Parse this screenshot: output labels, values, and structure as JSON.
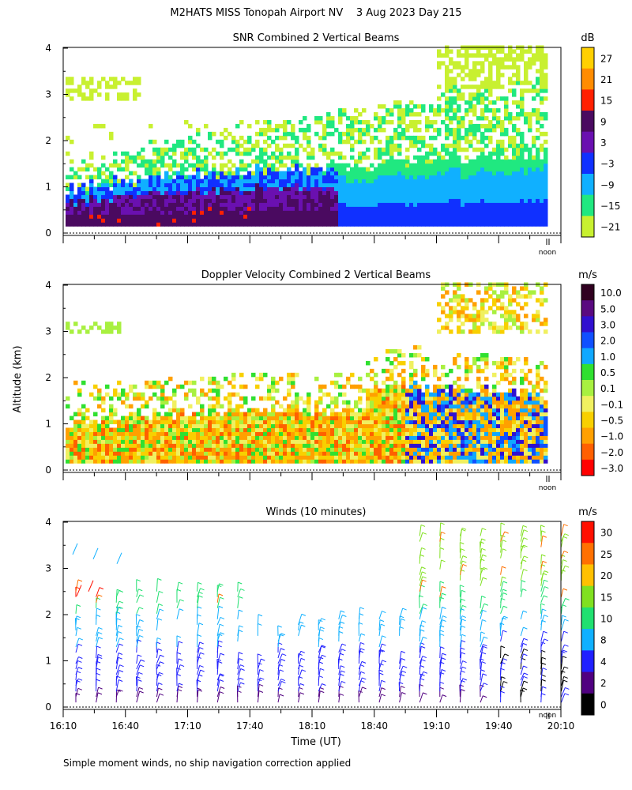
{
  "title": "M2HATS MISS Tonopah Airport NV    3 Aug 2023 Day 215",
  "ylabel": "Altitude (km)",
  "xlabel": "Time (UT)",
  "footnote": "Simple moment winds, no ship navigation correction applied",
  "noon_label": "noon",
  "x_ticks": [
    "16:10",
    "16:40",
    "17:10",
    "17:40",
    "18:10",
    "18:40",
    "19:10",
    "19:40",
    "20:10"
  ],
  "chart_data": [
    {
      "type": "heatmap",
      "title": "SNR Combined 2 Vertical Beams",
      "unit": "dB",
      "ylim": [
        0,
        4
      ],
      "y_ticks": [
        "0",
        "1",
        "2",
        "3",
        "4"
      ],
      "colorbar_labels": [
        "27",
        "21",
        "15",
        "9",
        "3",
        "−3",
        "−9",
        "−15",
        "−21"
      ],
      "colorbar_colors": [
        "#ffd000",
        "#ff8c00",
        "#ff2000",
        "#4a0a60",
        "#6a10b0",
        "#1030ff",
        "#10b0ff",
        "#20e880",
        "#c8f030"
      ]
    },
    {
      "type": "heatmap",
      "title": "Doppler Velocity Combined 2 Vertical Beams",
      "unit": "m/s",
      "ylim": [
        0,
        4
      ],
      "y_ticks": [
        "0",
        "1",
        "2",
        "3",
        "4"
      ],
      "colorbar_labels": [
        "10.0",
        "5.0",
        "3.0",
        "2.0",
        "1.0",
        "0.5",
        "0.1",
        "−0.1",
        "−0.5",
        "−1.0",
        "−2.0",
        "−3.0"
      ],
      "colorbar_colors": [
        "#300020",
        "#5a0a80",
        "#3010d0",
        "#1050ff",
        "#10a8ff",
        "#30e030",
        "#a8f040",
        "#f0f060",
        "#f8d000",
        "#ffa000",
        "#ff6000",
        "#ff0000"
      ]
    },
    {
      "type": "scatter",
      "title": "Winds (10 minutes)",
      "unit": "m/s",
      "ylim": [
        0,
        4
      ],
      "y_ticks": [
        "0",
        "1",
        "2",
        "3",
        "4"
      ],
      "colorbar_labels": [
        "30",
        "25",
        "20",
        "15",
        "10",
        "8",
        "4",
        "2",
        "0"
      ],
      "colorbar_colors": [
        "#ff1000",
        "#ff7000",
        "#ffc000",
        "#80e020",
        "#20e070",
        "#10b0ff",
        "#2020ff",
        "#500080",
        "#000000"
      ]
    }
  ]
}
